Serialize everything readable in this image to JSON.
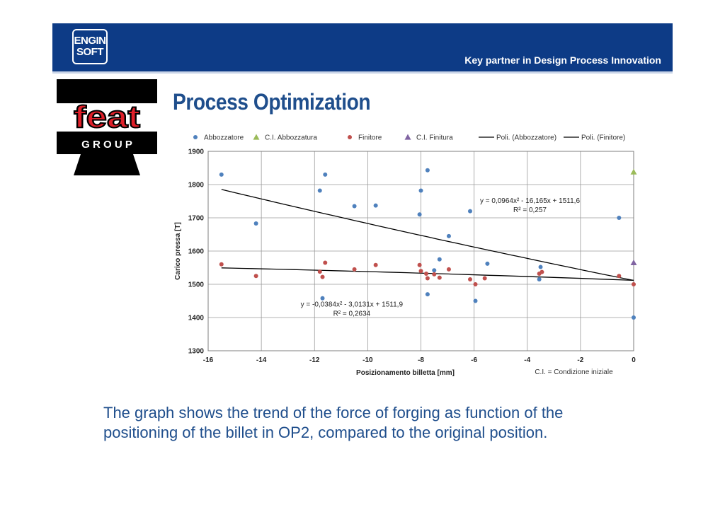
{
  "header": {
    "logo_line1": "ENGIN",
    "logo_line2": "SOFT",
    "tagline": "Key partner in Design Process Innovation"
  },
  "brand": {
    "feat_word": "feat",
    "feat_group": "G R O U P",
    "colors": {
      "feat_red": "#e0202a",
      "header_blue": "#0d3b86",
      "title_blue": "#1f4e8c"
    }
  },
  "slide": {
    "title": "Process Optimization",
    "caption_line1": "The graph shows the trend of the force of forging as function of the",
    "caption_line2": "positioning of the billet in OP2, compared to the original position."
  },
  "chart_data": {
    "type": "scatter",
    "xlabel": "Posizionamento billetta [mm]",
    "ylabel": "Carico pressa [T]",
    "xlim": [
      -16,
      0
    ],
    "ylim": [
      1300,
      1900
    ],
    "x_ticks": [
      -16,
      -14,
      -12,
      -10,
      -8,
      -6,
      -4,
      -2,
      0
    ],
    "y_ticks": [
      1300,
      1400,
      1500,
      1600,
      1700,
      1800,
      1900
    ],
    "x_tick_labels": [
      "-16",
      "-14",
      "-12",
      "-10",
      "-8",
      "-6",
      "-4",
      "-2",
      "0"
    ],
    "y_tick_labels": [
      "1300",
      "1400",
      "1500",
      "1600",
      "1700",
      "1800",
      "1900"
    ],
    "grid": true,
    "legend_position": "top",
    "note": "C.I. = Condizione iniziale",
    "series": [
      {
        "name": "Abbozzatore",
        "marker": "circle",
        "color": "#4f81bd",
        "points": [
          [
            -15.5,
            1830
          ],
          [
            -14.2,
            1683
          ],
          [
            -11.8,
            1782
          ],
          [
            -11.6,
            1830
          ],
          [
            -11.7,
            1458
          ],
          [
            -10.5,
            1735
          ],
          [
            -9.7,
            1737
          ],
          [
            -8,
            1782
          ],
          [
            -8.05,
            1710
          ],
          [
            -7.75,
            1843
          ],
          [
            -7.75,
            1470
          ],
          [
            -7.5,
            1542
          ],
          [
            -7.3,
            1575
          ],
          [
            -6.95,
            1645
          ],
          [
            -6.15,
            1720
          ],
          [
            -5.95,
            1450
          ],
          [
            -5.5,
            1562
          ],
          [
            -3.5,
            1552
          ],
          [
            -3.55,
            1515
          ],
          [
            -0.55,
            1700
          ],
          [
            0,
            1400
          ]
        ]
      },
      {
        "name": "C.I. Abbozzatura",
        "marker": "triangle",
        "color": "#9bbb59",
        "points": [
          [
            0,
            1838
          ]
        ]
      },
      {
        "name": "Finitore",
        "marker": "circle",
        "color": "#c0504d",
        "points": [
          [
            -15.5,
            1560
          ],
          [
            -14.2,
            1525
          ],
          [
            -11.8,
            1538
          ],
          [
            -11.7,
            1522
          ],
          [
            -11.6,
            1565
          ],
          [
            -10.5,
            1545
          ],
          [
            -9.7,
            1558
          ],
          [
            -8.05,
            1558
          ],
          [
            -8,
            1540
          ],
          [
            -7.8,
            1532
          ],
          [
            -7.75,
            1518
          ],
          [
            -7.5,
            1530
          ],
          [
            -7.3,
            1520
          ],
          [
            -6.95,
            1545
          ],
          [
            -6.15,
            1515
          ],
          [
            -5.95,
            1500
          ],
          [
            -5.6,
            1518
          ],
          [
            -3.55,
            1532
          ],
          [
            -3.45,
            1537
          ],
          [
            -0.55,
            1525
          ],
          [
            0,
            1500
          ]
        ]
      },
      {
        "name": "C.I. Finitura",
        "marker": "triangle",
        "color": "#8064a2",
        "points": [
          [
            0,
            1565
          ]
        ]
      }
    ],
    "trendlines": [
      {
        "name": "Poli. (Abbozzatore)",
        "coefficients": [
          0.0964,
          -16.165,
          1511.6
        ],
        "x_range": [
          -15.5,
          0
        ],
        "color": "#000000",
        "equation": "y = 0,0964x² - 16,165x + 1511,6",
        "r2": "R² = 0,257"
      },
      {
        "name": "Poli. (Finitore)",
        "coefficients": [
          -0.0384,
          -3.0131,
          1511.9
        ],
        "x_range": [
          -15.5,
          0
        ],
        "color": "#000000",
        "equation": "y = -0,0384x² - 3,0131x + 1511,9",
        "r2": "R² = 0,2634"
      }
    ]
  }
}
